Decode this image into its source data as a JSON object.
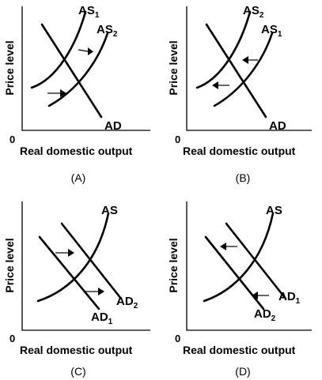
{
  "axes": {
    "y_label": "Price level",
    "x_label": "Real domestic output",
    "origin": "0"
  },
  "panels": [
    {
      "caption": "(A)",
      "curves": [
        {
          "base": "AS",
          "sub": "1"
        },
        {
          "base": "AS",
          "sub": "2"
        },
        {
          "base": "AD",
          "sub": ""
        }
      ],
      "shift": "right"
    },
    {
      "caption": "(B)",
      "curves": [
        {
          "base": "AS",
          "sub": "2"
        },
        {
          "base": "AS",
          "sub": "1"
        },
        {
          "base": "AD",
          "sub": ""
        }
      ],
      "shift": "left"
    },
    {
      "caption": "(C)",
      "curves": [
        {
          "base": "AS",
          "sub": ""
        },
        {
          "base": "AD",
          "sub": "2"
        },
        {
          "base": "AD",
          "sub": "1"
        }
      ],
      "shift": "right"
    },
    {
      "caption": "(D)",
      "curves": [
        {
          "base": "AS",
          "sub": ""
        },
        {
          "base": "AD",
          "sub": "1"
        },
        {
          "base": "AD",
          "sub": "2"
        }
      ],
      "shift": "left"
    }
  ]
}
